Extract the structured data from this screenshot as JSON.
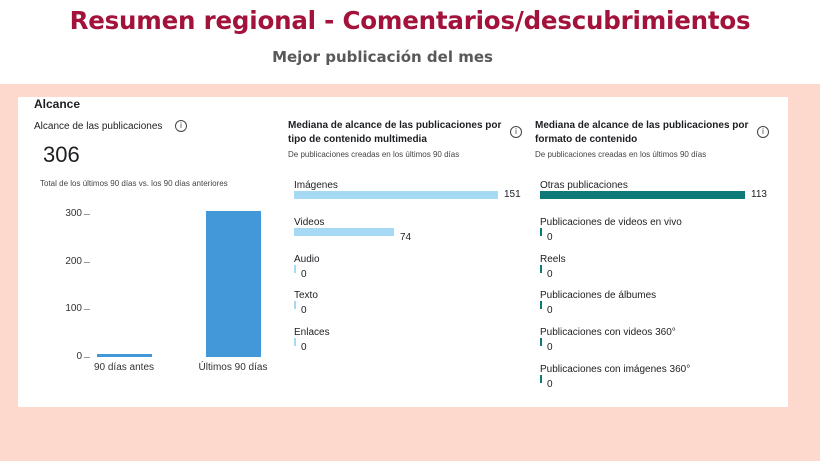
{
  "header": {
    "title": "Resumen regional - Comentarios/descubrimientos",
    "subtitle": "Mejor publicación del mes"
  },
  "section": {
    "title": "Alcance"
  },
  "reach_panel": {
    "title": "Alcance de las publicaciones",
    "total": "306",
    "caption": "Total de los últimos 90 días vs. los 90 días anteriores"
  },
  "media_panel": {
    "title_line1": "Mediana de alcance de las publicaciones por",
    "title_line2": "tipo de contenido multimedia",
    "subtitle": "De publicaciones creadas en los últimos 90 días"
  },
  "format_panel": {
    "title_line1": "Mediana de alcance de las publicaciones por",
    "title_line2": "formato de contenido",
    "subtitle": "De publicaciones creadas en los últimos 90 días"
  },
  "colors": {
    "title": "#a3123a",
    "band": "#fdd9cd",
    "reach_bar": "#4398d9",
    "media_bar": "#a6daf4",
    "format_bar": "#0d7a78"
  },
  "chart_data": [
    {
      "type": "bar",
      "title": "Alcance de las publicaciones",
      "categories": [
        "90 días antes",
        "Últimos 90 días"
      ],
      "values": [
        6,
        306
      ],
      "y_ticks": [
        "0",
        "100",
        "200",
        "300"
      ],
      "ylim": [
        0,
        320
      ]
    },
    {
      "type": "bar",
      "orientation": "horizontal",
      "title": "Mediana de alcance de las publicaciones por tipo de contenido multimedia",
      "categories": [
        "Imágenes",
        "Videos",
        "Audio",
        "Texto",
        "Enlaces"
      ],
      "values": [
        151,
        74,
        0,
        0,
        0
      ],
      "value_labels": [
        "151",
        "74",
        "0",
        "0",
        "0"
      ]
    },
    {
      "type": "bar",
      "orientation": "horizontal",
      "title": "Mediana de alcance de las publicaciones por formato de contenido",
      "categories": [
        "Otras publicaciones",
        "Publicaciones de videos en vivo",
        "Reels",
        "Publicaciones de álbumes",
        "Publicaciones con videos 360°",
        "Publicaciones con imágenes 360°"
      ],
      "values": [
        113,
        0,
        0,
        0,
        0,
        0
      ],
      "value_labels": [
        "113",
        "0",
        "0",
        "0",
        "0",
        "0"
      ]
    }
  ]
}
